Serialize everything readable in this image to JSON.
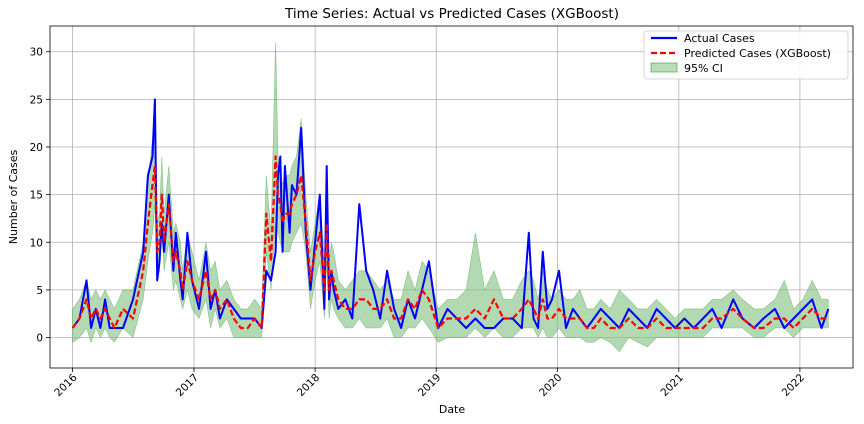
{
  "chart_data": {
    "type": "line",
    "title": "Time Series: Actual vs Predicted Cases (XGBoost)",
    "xlabel": "Date",
    "ylabel": "Number of Cases",
    "xlim": [
      "2015-10-25",
      "2022-06-10"
    ],
    "ylim": [
      -3.2,
      32.7
    ],
    "x_ticks": [
      "2016-01-01",
      "2017-01-01",
      "2018-01-01",
      "2019-01-01",
      "2020-01-01",
      "2021-01-01",
      "2022-01-01"
    ],
    "x_tick_labels": [
      "2016",
      "2017",
      "2018",
      "2019",
      "2020",
      "2021",
      "2022"
    ],
    "y_ticks": [
      0,
      5,
      10,
      15,
      20,
      25,
      30
    ],
    "grid": true,
    "legend_position": "top-right",
    "colors": {
      "actual": "#0000ff",
      "predicted": "#ff0000",
      "ci_fill": "#7fbf7f",
      "ci_stroke": "#3c9a3c"
    },
    "series": [
      {
        "name": "Actual Cases",
        "style": "solid",
        "x": [
          "2016-01-01",
          "2016-01-22",
          "2016-02-12",
          "2016-02-26",
          "2016-03-11",
          "2016-03-25",
          "2016-04-08",
          "2016-04-22",
          "2016-05-06",
          "2016-06-01",
          "2016-07-01",
          "2016-08-01",
          "2016-08-15",
          "2016-08-29",
          "2016-09-05",
          "2016-09-12",
          "2016-09-19",
          "2016-09-26",
          "2016-10-03",
          "2016-10-17",
          "2016-10-31",
          "2016-11-07",
          "2016-11-21",
          "2016-11-28",
          "2016-12-12",
          "2016-12-26",
          "2017-01-16",
          "2017-02-06",
          "2017-02-20",
          "2017-03-06",
          "2017-03-20",
          "2017-04-10",
          "2017-05-01",
          "2017-05-22",
          "2017-06-12",
          "2017-07-03",
          "2017-07-24",
          "2017-08-07",
          "2017-08-21",
          "2017-09-04",
          "2017-09-11",
          "2017-09-18",
          "2017-09-25",
          "2017-10-02",
          "2017-10-16",
          "2017-10-23",
          "2017-11-06",
          "2017-11-20",
          "2017-12-04",
          "2017-12-18",
          "2018-01-01",
          "2018-01-15",
          "2018-01-29",
          "2018-02-05",
          "2018-02-12",
          "2018-02-19",
          "2018-02-26",
          "2018-03-12",
          "2018-04-02",
          "2018-04-23",
          "2018-05-14",
          "2018-06-04",
          "2018-06-25",
          "2018-07-16",
          "2018-08-06",
          "2018-08-27",
          "2018-09-17",
          "2018-10-08",
          "2018-10-29",
          "2018-11-19",
          "2018-12-10",
          "2019-01-07",
          "2019-02-04",
          "2019-03-04",
          "2019-04-01",
          "2019-04-29",
          "2019-05-27",
          "2019-06-24",
          "2019-07-22",
          "2019-08-19",
          "2019-09-16",
          "2019-10-07",
          "2019-10-21",
          "2019-11-04",
          "2019-11-18",
          "2019-12-02",
          "2019-12-16",
          "2020-01-06",
          "2020-01-27",
          "2020-02-17",
          "2020-03-09",
          "2020-03-30",
          "2020-04-20",
          "2020-05-11",
          "2020-06-08",
          "2020-07-06",
          "2020-08-03",
          "2020-08-31",
          "2020-09-28",
          "2020-10-26",
          "2020-11-23",
          "2020-12-21",
          "2021-01-18",
          "2021-02-15",
          "2021-03-15",
          "2021-04-12",
          "2021-05-10",
          "2021-06-14",
          "2021-07-12",
          "2021-08-16",
          "2021-09-13",
          "2021-10-18",
          "2021-11-15",
          "2021-12-13",
          "2022-01-10",
          "2022-02-07",
          "2022-03-07",
          "2022-03-28"
        ],
        "values": [
          1,
          2,
          6,
          1,
          3,
          1,
          4,
          1,
          1,
          1,
          4,
          9,
          17,
          19,
          25,
          6,
          8,
          12,
          9,
          15,
          7,
          11,
          6,
          4,
          11,
          6,
          3,
          9,
          3,
          5,
          2,
          4,
          3,
          2,
          2,
          2,
          1,
          7,
          6,
          9,
          17,
          19,
          9,
          18,
          11,
          16,
          15,
          22,
          11,
          5,
          10,
          15,
          3,
          18,
          4,
          7,
          5,
          3,
          4,
          2,
          14,
          7,
          5,
          2,
          7,
          3,
          1,
          4,
          2,
          5,
          8,
          1,
          3,
          2,
          1,
          2,
          1,
          1,
          2,
          2,
          1,
          11,
          2,
          1,
          9,
          3,
          4,
          7,
          1,
          3,
          2,
          1,
          2,
          3,
          2,
          1,
          3,
          2,
          1,
          3,
          2,
          1,
          2,
          1,
          2,
          3,
          1,
          4,
          2,
          1,
          2,
          3,
          1,
          2,
          3,
          4,
          1,
          3
        ]
      },
      {
        "name": "Predicted Cases (XGBoost)",
        "style": "dashed",
        "x": [
          "2016-01-01",
          "2016-01-22",
          "2016-02-12",
          "2016-02-26",
          "2016-03-11",
          "2016-03-25",
          "2016-04-08",
          "2016-04-22",
          "2016-05-06",
          "2016-06-01",
          "2016-07-01",
          "2016-08-01",
          "2016-08-15",
          "2016-08-29",
          "2016-09-05",
          "2016-09-12",
          "2016-09-19",
          "2016-09-26",
          "2016-10-03",
          "2016-10-17",
          "2016-10-31",
          "2016-11-07",
          "2016-11-21",
          "2016-11-28",
          "2016-12-12",
          "2016-12-26",
          "2017-01-16",
          "2017-02-06",
          "2017-02-20",
          "2017-03-06",
          "2017-03-20",
          "2017-04-10",
          "2017-05-01",
          "2017-05-22",
          "2017-06-12",
          "2017-07-03",
          "2017-07-24",
          "2017-08-07",
          "2017-08-21",
          "2017-09-04",
          "2017-09-11",
          "2017-09-18",
          "2017-09-25",
          "2017-10-02",
          "2017-10-16",
          "2017-10-23",
          "2017-11-06",
          "2017-11-20",
          "2017-12-04",
          "2017-12-18",
          "2018-01-01",
          "2018-01-15",
          "2018-01-29",
          "2018-02-05",
          "2018-02-12",
          "2018-02-19",
          "2018-02-26",
          "2018-03-12",
          "2018-04-02",
          "2018-04-23",
          "2018-05-14",
          "2018-06-04",
          "2018-06-25",
          "2018-07-16",
          "2018-08-06",
          "2018-08-27",
          "2018-09-17",
          "2018-10-08",
          "2018-10-29",
          "2018-11-19",
          "2018-12-10",
          "2019-01-07",
          "2019-02-04",
          "2019-03-04",
          "2019-04-01",
          "2019-04-29",
          "2019-05-27",
          "2019-06-24",
          "2019-07-22",
          "2019-08-19",
          "2019-09-16",
          "2019-10-07",
          "2019-10-21",
          "2019-11-04",
          "2019-11-18",
          "2019-12-02",
          "2019-12-16",
          "2020-01-06",
          "2020-01-27",
          "2020-02-17",
          "2020-03-09",
          "2020-03-30",
          "2020-04-20",
          "2020-05-11",
          "2020-06-08",
          "2020-07-06",
          "2020-08-03",
          "2020-08-31",
          "2020-09-28",
          "2020-10-26",
          "2020-11-23",
          "2020-12-21",
          "2021-01-18",
          "2021-02-15",
          "2021-03-15",
          "2021-04-12",
          "2021-05-10",
          "2021-06-14",
          "2021-07-12",
          "2021-08-16",
          "2021-09-13",
          "2021-10-18",
          "2021-11-15",
          "2021-12-13",
          "2022-01-10",
          "2022-02-07",
          "2022-03-07",
          "2022-03-28"
        ],
        "values": [
          1,
          2,
          4,
          2,
          3,
          2,
          3,
          2,
          1,
          3,
          2,
          7,
          12,
          16,
          18,
          9,
          10,
          15,
          10,
          14,
          8,
          9,
          7,
          5,
          8,
          6,
          4,
          7,
          4,
          5,
          3,
          4,
          2,
          1,
          1,
          2,
          1,
          13,
          8,
          19,
          15,
          14,
          12,
          13,
          13,
          14,
          15,
          17,
          12,
          6,
          9,
          11,
          5,
          12,
          5,
          7,
          6,
          4,
          3,
          3,
          4,
          4,
          3,
          3,
          4,
          2,
          2,
          4,
          3,
          5,
          4,
          1,
          2,
          2,
          2,
          3,
          2,
          4,
          2,
          2,
          3,
          4,
          3,
          2,
          4,
          2,
          2,
          3,
          2,
          2,
          2,
          1,
          1,
          2,
          1,
          1,
          2,
          1,
          1,
          2,
          1,
          1,
          1,
          1,
          1,
          2,
          2,
          3,
          2,
          1,
          1,
          2,
          2,
          1,
          2,
          3,
          2,
          2
        ]
      }
    ],
    "ci": {
      "name": "95% CI",
      "x": [
        "2016-01-01",
        "2016-01-22",
        "2016-02-12",
        "2016-02-26",
        "2016-03-11",
        "2016-03-25",
        "2016-04-08",
        "2016-04-22",
        "2016-05-06",
        "2016-06-01",
        "2016-07-01",
        "2016-08-01",
        "2016-08-15",
        "2016-08-29",
        "2016-09-05",
        "2016-09-12",
        "2016-09-19",
        "2016-09-26",
        "2016-10-03",
        "2016-10-17",
        "2016-10-31",
        "2016-11-07",
        "2016-11-21",
        "2016-11-28",
        "2016-12-12",
        "2016-12-26",
        "2017-01-16",
        "2017-02-06",
        "2017-02-20",
        "2017-03-06",
        "2017-03-20",
        "2017-04-10",
        "2017-05-01",
        "2017-05-22",
        "2017-06-12",
        "2017-07-03",
        "2017-07-24",
        "2017-08-07",
        "2017-08-21",
        "2017-09-04",
        "2017-09-11",
        "2017-09-18",
        "2017-09-25",
        "2017-10-02",
        "2017-10-16",
        "2017-10-23",
        "2017-11-06",
        "2017-11-20",
        "2017-12-04",
        "2017-12-18",
        "2018-01-01",
        "2018-01-15",
        "2018-01-29",
        "2018-02-05",
        "2018-02-12",
        "2018-02-19",
        "2018-02-26",
        "2018-03-12",
        "2018-04-02",
        "2018-04-23",
        "2018-05-14",
        "2018-06-04",
        "2018-06-25",
        "2018-07-16",
        "2018-08-06",
        "2018-08-27",
        "2018-09-17",
        "2018-10-08",
        "2018-10-29",
        "2018-11-19",
        "2018-12-10",
        "2019-01-07",
        "2019-02-04",
        "2019-03-04",
        "2019-04-01",
        "2019-04-29",
        "2019-05-27",
        "2019-06-24",
        "2019-07-22",
        "2019-08-19",
        "2019-09-16",
        "2019-10-07",
        "2019-10-21",
        "2019-11-04",
        "2019-11-18",
        "2019-12-02",
        "2019-12-16",
        "2020-01-06",
        "2020-01-27",
        "2020-02-17",
        "2020-03-09",
        "2020-03-30",
        "2020-04-20",
        "2020-05-11",
        "2020-06-08",
        "2020-07-06",
        "2020-08-03",
        "2020-08-31",
        "2020-09-28",
        "2020-10-26",
        "2020-11-23",
        "2020-12-21",
        "2021-01-18",
        "2021-02-15",
        "2021-03-15",
        "2021-04-12",
        "2021-05-10",
        "2021-06-14",
        "2021-07-12",
        "2021-08-16",
        "2021-09-13",
        "2021-10-18",
        "2021-11-15",
        "2021-12-13",
        "2022-01-10",
        "2022-02-07",
        "2022-03-07",
        "2022-03-28"
      ],
      "lower": [
        -0.5,
        0,
        1,
        -0.5,
        1,
        0,
        1,
        0,
        -0.5,
        1,
        0,
        4,
        8,
        11,
        14,
        6,
        7,
        11,
        7,
        10,
        5,
        6,
        4,
        3,
        5,
        3,
        2,
        4,
        1,
        3,
        1,
        2,
        0,
        0,
        0,
        0,
        0,
        9,
        5,
        12,
        11,
        10,
        9,
        9,
        9,
        10,
        11,
        12,
        9,
        3,
        6,
        8,
        2,
        8,
        2,
        4,
        3,
        2,
        1,
        1,
        2,
        1,
        1,
        1,
        2,
        0,
        0,
        1,
        1,
        2,
        1,
        -0.5,
        0,
        0,
        0,
        1,
        0,
        1,
        0,
        0,
        1,
        1,
        1,
        0,
        1,
        0,
        0,
        1,
        0,
        0,
        0,
        -0.5,
        -0.5,
        0,
        -0.5,
        -1.5,
        0,
        -0.5,
        -1,
        0,
        0,
        0,
        0,
        0,
        0,
        1,
        1,
        1,
        1,
        0,
        0,
        1,
        1,
        0,
        1,
        1,
        1,
        1
      ],
      "upper": [
        3,
        4,
        6,
        4,
        5,
        4,
        5,
        4,
        3,
        5,
        5,
        10,
        16,
        21,
        24,
        12,
        13,
        19,
        13,
        18,
        11,
        12,
        10,
        7,
        11,
        9,
        6,
        10,
        7,
        8,
        5,
        6,
        4,
        3,
        3,
        4,
        3,
        17,
        11,
        31,
        19,
        18,
        16,
        17,
        17,
        18,
        19,
        23,
        15,
        9,
        12,
        15,
        8,
        15,
        8,
        10,
        9,
        6,
        5,
        6,
        7,
        7,
        6,
        5,
        6,
        4,
        4,
        7,
        5,
        8,
        7,
        3,
        4,
        4,
        5,
        11,
        5,
        7,
        4,
        4,
        6,
        7,
        6,
        4,
        7,
        5,
        4,
        5,
        4,
        4,
        5,
        3,
        3,
        4,
        3,
        5,
        4,
        3,
        3,
        4,
        3,
        2,
        3,
        3,
        3,
        4,
        4,
        5,
        4,
        3,
        3,
        4,
        6,
        3,
        4,
        6,
        4,
        4
      ]
    }
  }
}
